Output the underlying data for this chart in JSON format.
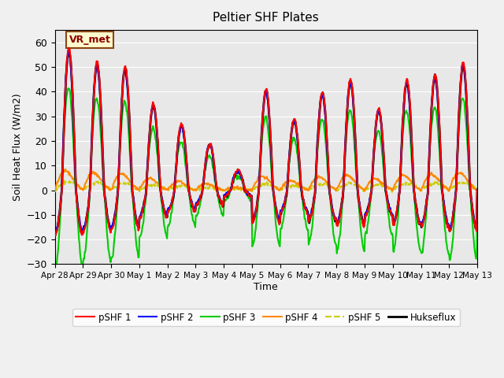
{
  "title": "Peltier SHF Plates",
  "xlabel": "Time",
  "ylabel": "Soil Heat Flux (W/m2)",
  "ylim": [
    -30,
    65
  ],
  "yticks": [
    -30,
    -20,
    -10,
    0,
    10,
    20,
    30,
    40,
    50,
    60
  ],
  "annotation_text": "VR_met",
  "bg_color": "#e8e8e8",
  "series_colors": {
    "pSHF 1": "#ff0000",
    "pSHF 2": "#0000ff",
    "pSHF 3": "#00cc00",
    "pSHF 4": "#ff8800",
    "pSHF 5": "#cccc00",
    "Hukseflux": "#000000"
  },
  "series_linewidths": {
    "pSHF 1": 1.5,
    "pSHF 2": 1.5,
    "pSHF 3": 1.5,
    "pSHF 4": 1.5,
    "pSHF 5": 1.5,
    "Hukseflux": 2.0
  },
  "series_linestyles": {
    "pSHF 1": "-",
    "pSHF 2": "-",
    "pSHF 3": "-",
    "pSHF 4": "-",
    "pSHF 5": "--",
    "Hukseflux": "-"
  },
  "x_tick_positions": [
    0,
    1,
    2,
    3,
    4,
    5,
    6,
    7,
    8,
    9,
    10,
    11,
    12,
    13,
    14,
    15
  ],
  "x_tick_labels": [
    "Apr 28",
    "Apr 29",
    "Apr 30",
    "May 1",
    "May 2",
    "May 3",
    "May 4",
    "May 5",
    "May 6",
    "May 7",
    "May 8",
    "May 9",
    "May 10",
    "May 11",
    "May 12",
    "May 13"
  ],
  "num_days": 15,
  "points_per_day": 48,
  "daily_amplitudes": [
    58,
    52,
    50,
    35,
    27,
    19,
    8,
    41,
    29,
    40,
    45,
    33,
    45,
    47,
    52
  ]
}
